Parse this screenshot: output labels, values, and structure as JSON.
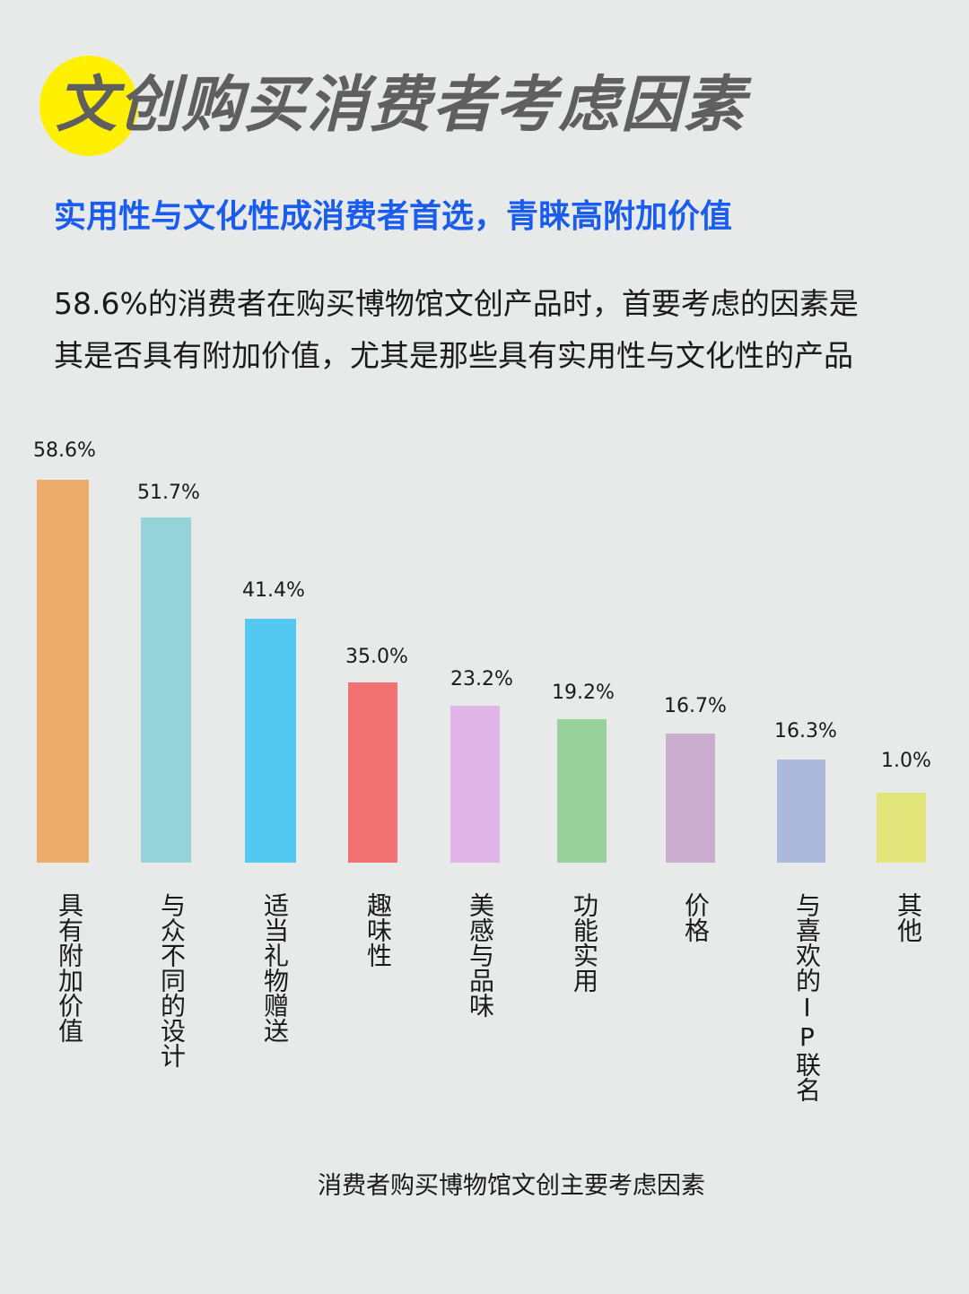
{
  "header": {
    "title": "文创购买消费者考虑因素",
    "accent_circle_color": "#fff000",
    "subtitle": "实用性与文化性成消费者首选，青睐高附加价值",
    "subtitle_color": "#1a5cf0",
    "description_lines": [
      "58.6%的消费者在购买博物馆文创产品时，首要考虑的因素是",
      "其是否具有附加价值，尤其是那些具有实用性与文化性的产品"
    ]
  },
  "chart_data": {
    "type": "bar",
    "title": "消费者购买博物馆文创主要考虑因素",
    "xlabel": "",
    "ylabel": "",
    "ylim": [
      0,
      60
    ],
    "grid": false,
    "legend": "none",
    "categories": [
      "具有附加价值",
      "与众不同的设计",
      "适当礼物赠送",
      "趣味性",
      "美感与品味",
      "功能实用",
      "价格",
      "与喜欢的IP联名",
      "其他"
    ],
    "values": [
      58.6,
      51.7,
      41.4,
      35.0,
      23.2,
      19.2,
      16.7,
      16.3,
      1.0
    ],
    "value_labels": [
      "58.6%",
      "51.7%",
      "41.4%",
      "35.0%",
      "23.2%",
      "19.2%",
      "16.7%",
      "16.3%",
      "1.0%"
    ],
    "colors": [
      "#ecac6c",
      "#95d3d8",
      "#53c8f0",
      "#f27273",
      "#e1b5e8",
      "#98d19c",
      "#c9afcd",
      "#acb8dc",
      "#e2e67a"
    ]
  }
}
